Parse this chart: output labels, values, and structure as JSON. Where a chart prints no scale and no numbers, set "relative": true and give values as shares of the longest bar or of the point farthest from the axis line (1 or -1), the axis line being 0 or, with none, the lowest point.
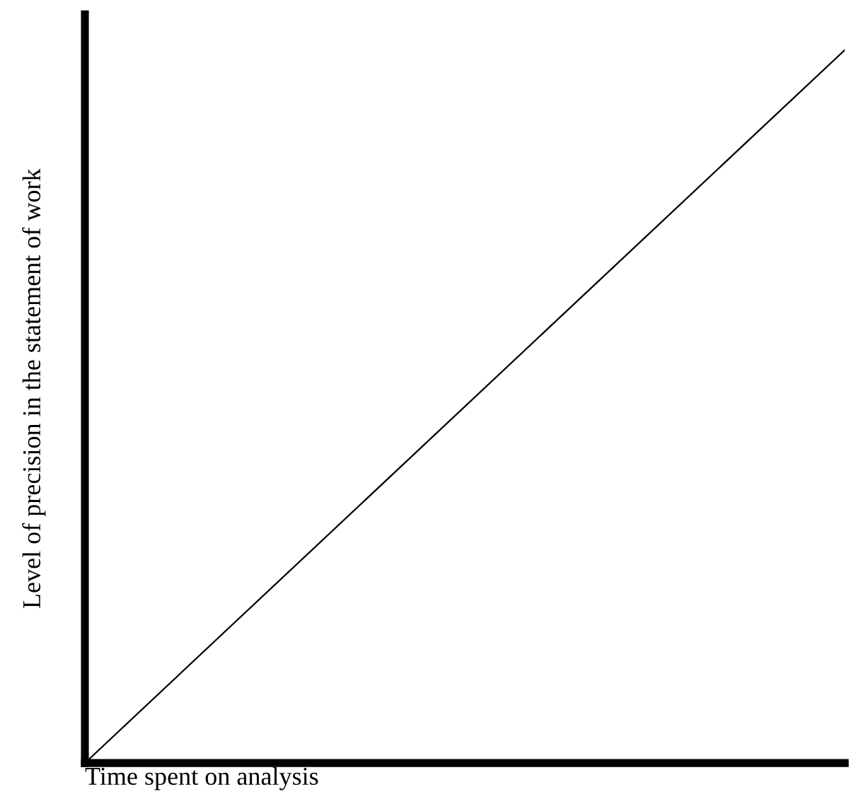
{
  "chart_data": {
    "type": "line",
    "relative": true,
    "xlabel": "Time spent on analysis",
    "ylabel": "Level of precision in the statement of work",
    "categories": [
      null,
      null
    ],
    "series": [
      {
        "color": "#000000",
        "values": [
          0,
          1
        ]
      }
    ],
    "legend": false,
    "marker": "none",
    "line_style": "solid"
  }
}
